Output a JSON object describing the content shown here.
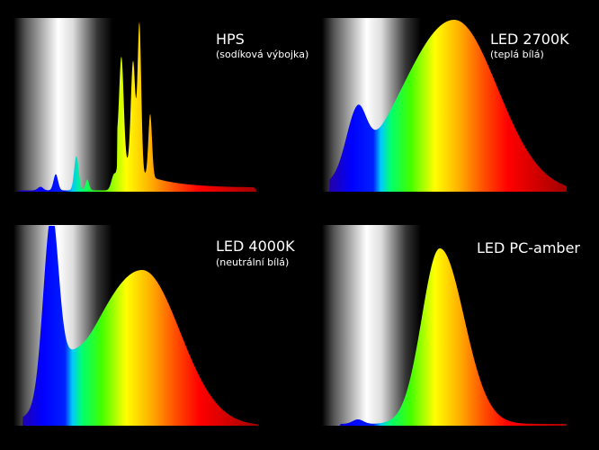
{
  "panels": [
    {
      "title": "HPS",
      "subtitle": "(sodíková výbojka)"
    },
    {
      "title": "LED 2700K",
      "subtitle": "(teplá bílá)"
    },
    {
      "title": "LED 4000K",
      "subtitle": "(neutrální bílá)"
    },
    {
      "title": "LED PC-amber"
    }
  ]
}
